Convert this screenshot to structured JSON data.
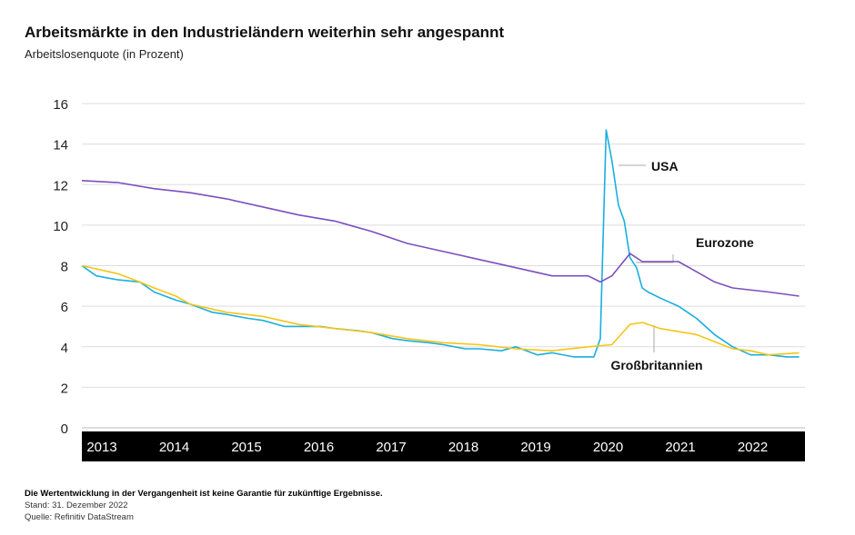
{
  "chart_data": {
    "type": "line",
    "title": "Arbeitsmärkte in den Industrieländern weiterhin sehr angespannt",
    "subtitle": "Arbeitslosenquote (in Prozent)",
    "ylim": [
      0,
      16
    ],
    "xlim": [
      2013,
      2023
    ],
    "yticks": [
      0,
      2,
      4,
      6,
      8,
      10,
      12,
      14,
      16
    ],
    "xticks": [
      "2013",
      "2014",
      "2015",
      "2016",
      "2017",
      "2018",
      "2019",
      "2020",
      "2021",
      "2022"
    ],
    "grid": true,
    "series": [
      {
        "name": "USA",
        "color": "#1aaee0",
        "x": [
          2013.0,
          2013.2,
          2013.5,
          2013.8,
          2014.0,
          2014.3,
          2014.5,
          2014.8,
          2015.0,
          2015.3,
          2015.5,
          2015.8,
          2016.0,
          2016.3,
          2016.5,
          2016.8,
          2017.0,
          2017.3,
          2017.5,
          2017.8,
          2018.0,
          2018.3,
          2018.5,
          2018.8,
          2019.0,
          2019.3,
          2019.5,
          2019.8,
          2020.08,
          2020.17,
          2020.25,
          2020.33,
          2020.42,
          2020.5,
          2020.58,
          2020.67,
          2020.75,
          2020.83,
          2021.0,
          2021.25,
          2021.5,
          2021.75,
          2022.0,
          2022.25,
          2022.5,
          2022.75,
          2022.92
        ],
        "y": [
          8.0,
          7.5,
          7.3,
          7.2,
          6.7,
          6.3,
          6.1,
          5.7,
          5.6,
          5.4,
          5.3,
          5.0,
          5.0,
          5.0,
          4.9,
          4.8,
          4.7,
          4.4,
          4.3,
          4.2,
          4.1,
          3.9,
          3.9,
          3.8,
          4.0,
          3.6,
          3.7,
          3.5,
          3.5,
          4.4,
          14.7,
          13.2,
          11.0,
          10.2,
          8.4,
          7.9,
          6.9,
          6.7,
          6.4,
          6.0,
          5.4,
          4.6,
          4.0,
          3.6,
          3.6,
          3.5,
          3.5
        ]
      },
      {
        "name": "Eurozone",
        "color": "#7b4fbf",
        "x": [
          2013.0,
          2013.5,
          2014.0,
          2014.5,
          2015.0,
          2015.5,
          2016.0,
          2016.5,
          2017.0,
          2017.5,
          2018.0,
          2018.5,
          2019.0,
          2019.5,
          2020.0,
          2020.17,
          2020.33,
          2020.58,
          2020.75,
          2021.0,
          2021.25,
          2021.5,
          2021.75,
          2022.0,
          2022.5,
          2022.92
        ],
        "y": [
          12.2,
          12.1,
          11.8,
          11.6,
          11.3,
          10.9,
          10.5,
          10.2,
          9.7,
          9.1,
          8.7,
          8.3,
          7.9,
          7.5,
          7.5,
          7.2,
          7.5,
          8.6,
          8.2,
          8.2,
          8.2,
          7.7,
          7.2,
          6.9,
          6.7,
          6.5
        ]
      },
      {
        "name": "Großbritannien",
        "color": "#f5c518",
        "x": [
          2013.0,
          2013.5,
          2013.8,
          2014.0,
          2014.3,
          2014.5,
          2015.0,
          2015.5,
          2016.0,
          2016.5,
          2017.0,
          2017.5,
          2018.0,
          2018.5,
          2019.0,
          2019.5,
          2020.0,
          2020.33,
          2020.58,
          2020.75,
          2021.0,
          2021.5,
          2022.0,
          2022.25,
          2022.5,
          2022.92
        ],
        "y": [
          8.0,
          7.6,
          7.2,
          6.9,
          6.5,
          6.1,
          5.7,
          5.5,
          5.1,
          4.9,
          4.7,
          4.4,
          4.2,
          4.1,
          3.9,
          3.8,
          4.0,
          4.1,
          5.1,
          5.2,
          4.9,
          4.6,
          3.9,
          3.8,
          3.6,
          3.7
        ]
      }
    ]
  },
  "footer": {
    "disclaimer": "Die Wertentwicklung in der Vergangenheit ist keine Garantie für zukünftige Ergebnisse.",
    "stand": "Stand: 31. Dezember 2022",
    "quelle": "Quelle: Refinitiv DataStream"
  }
}
